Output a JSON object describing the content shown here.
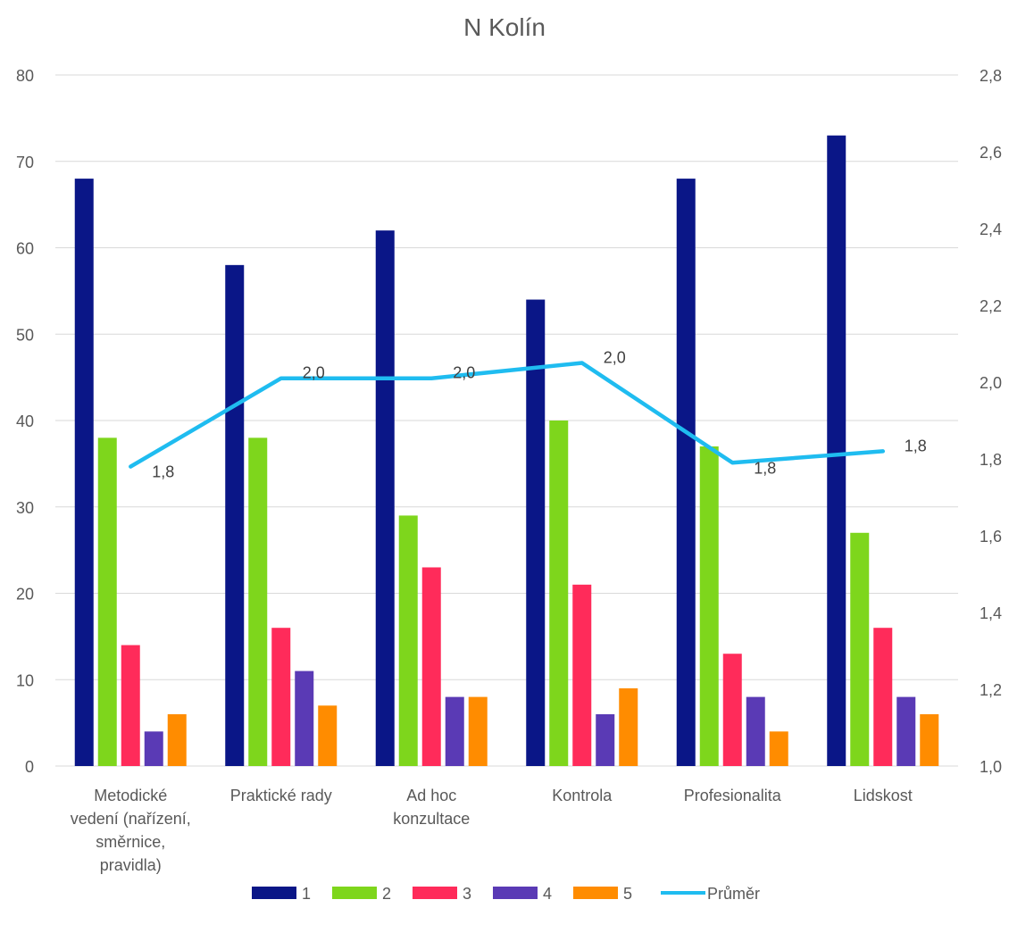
{
  "chart_data": {
    "type": "bar",
    "title": "N Kolín",
    "categories": [
      [
        "Metodické",
        "vedení (nařízení,",
        "směrnice,",
        "pravidla)"
      ],
      [
        "Praktické rady"
      ],
      [
        "Ad hoc",
        "konzultace"
      ],
      [
        "Kontrola"
      ],
      [
        "Profesionalita"
      ],
      [
        "Lidskost"
      ]
    ],
    "series": [
      {
        "name": "1",
        "color": "#0a1687",
        "values": [
          68,
          58,
          62,
          54,
          68,
          73
        ]
      },
      {
        "name": "2",
        "color": "#7ed61c",
        "values": [
          38,
          38,
          29,
          40,
          37,
          27
        ]
      },
      {
        "name": "3",
        "color": "#ff2b5a",
        "values": [
          14,
          16,
          23,
          21,
          13,
          16
        ]
      },
      {
        "name": "4",
        "color": "#5a3ab5",
        "values": [
          4,
          11,
          8,
          6,
          8,
          8
        ]
      },
      {
        "name": "5",
        "color": "#ff8c00",
        "values": [
          6,
          7,
          8,
          9,
          4,
          6
        ]
      }
    ],
    "line_series": {
      "name": "Průměr",
      "color": "#1fbcf0",
      "axis": "right",
      "values": [
        1.78,
        2.01,
        2.01,
        2.05,
        1.79,
        1.82
      ],
      "labels": [
        "1,8",
        "2,0",
        "2,0",
        "2,0",
        "1,8",
        "1,8"
      ]
    },
    "y_left": {
      "min": 0,
      "max": 80,
      "ticks": [
        "0",
        "10",
        "20",
        "30",
        "40",
        "50",
        "60",
        "70",
        "80"
      ]
    },
    "y_right": {
      "min": 1.0,
      "max": 2.8,
      "ticks": [
        "1,0",
        "1,2",
        "1,4",
        "1,6",
        "1,8",
        "2,0",
        "2,2",
        "2,4",
        "2,6",
        "2,8"
      ]
    },
    "grid": true,
    "legend_position": "bottom"
  }
}
